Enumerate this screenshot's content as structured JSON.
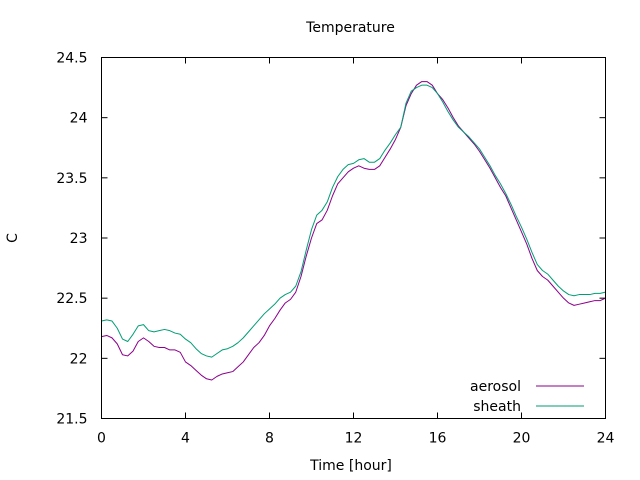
{
  "chart_data": {
    "type": "line",
    "title": "Temperature",
    "xlabel": "Time [hour]",
    "ylabel": "C",
    "xlim": [
      0,
      24
    ],
    "ylim": [
      21.5,
      24.5
    ],
    "xticks": [
      0,
      4,
      8,
      12,
      16,
      20,
      24
    ],
    "xtick_labels": [
      "0",
      "4",
      "8",
      "12",
      "16",
      "20",
      "24"
    ],
    "yticks": [
      21.5,
      22,
      22.5,
      23,
      23.5,
      24,
      24.5
    ],
    "ytick_labels": [
      "21.5",
      "22",
      "22.5",
      "23",
      "23.5",
      "24",
      "24.5"
    ],
    "grid": false,
    "legend_position": "bottom-right",
    "series": [
      {
        "name": "aerosol",
        "color": "#8b008b",
        "x": [
          0,
          0.25,
          0.5,
          0.75,
          1.0,
          1.25,
          1.5,
          1.75,
          2.0,
          2.25,
          2.5,
          2.75,
          3.0,
          3.25,
          3.5,
          3.75,
          4.0,
          4.25,
          4.5,
          4.75,
          5.0,
          5.25,
          5.5,
          5.75,
          6.0,
          6.25,
          6.5,
          6.75,
          7.0,
          7.25,
          7.5,
          7.75,
          8.0,
          8.25,
          8.5,
          8.75,
          9.0,
          9.25,
          9.5,
          9.75,
          10.0,
          10.25,
          10.5,
          10.75,
          11.0,
          11.25,
          11.5,
          11.75,
          12.0,
          12.25,
          12.5,
          12.75,
          13.0,
          13.25,
          13.5,
          13.75,
          14.0,
          14.25,
          14.5,
          14.75,
          15.0,
          15.25,
          15.5,
          15.75,
          16.0,
          16.25,
          16.5,
          16.75,
          17.0,
          17.25,
          17.5,
          17.75,
          18.0,
          18.25,
          18.5,
          18.75,
          19.0,
          19.25,
          19.5,
          19.75,
          20.0,
          20.25,
          20.5,
          20.75,
          21.0,
          21.25,
          21.5,
          21.75,
          22.0,
          22.25,
          22.5,
          22.75,
          23.0,
          23.25,
          23.5,
          23.75,
          24.0
        ],
        "values": [
          22.18,
          22.19,
          22.17,
          22.12,
          22.03,
          22.02,
          22.06,
          22.14,
          22.17,
          22.14,
          22.1,
          22.09,
          22.09,
          22.07,
          22.07,
          22.05,
          21.97,
          21.94,
          21.9,
          21.86,
          21.83,
          21.82,
          21.85,
          21.87,
          21.88,
          21.89,
          21.93,
          21.97,
          22.03,
          22.09,
          22.13,
          22.19,
          22.27,
          22.33,
          22.4,
          22.46,
          22.49,
          22.55,
          22.68,
          22.85,
          23.0,
          23.12,
          23.15,
          23.23,
          23.35,
          23.45,
          23.5,
          23.55,
          23.58,
          23.6,
          23.58,
          23.57,
          23.57,
          23.6,
          23.67,
          23.74,
          23.82,
          23.92,
          24.1,
          24.2,
          24.27,
          24.3,
          24.3,
          24.27,
          24.2,
          24.15,
          24.08,
          24.0,
          23.93,
          23.88,
          23.83,
          23.78,
          23.72,
          23.65,
          23.58,
          23.5,
          23.42,
          23.35,
          23.25,
          23.15,
          23.05,
          22.95,
          22.83,
          22.73,
          22.68,
          22.65,
          22.6,
          22.55,
          22.5,
          22.46,
          22.44,
          22.45,
          22.46,
          22.47,
          22.48,
          22.48,
          22.5
        ]
      },
      {
        "name": "sheath",
        "color": "#009e73",
        "x": [
          0,
          0.25,
          0.5,
          0.75,
          1.0,
          1.25,
          1.5,
          1.75,
          2.0,
          2.25,
          2.5,
          2.75,
          3.0,
          3.25,
          3.5,
          3.75,
          4.0,
          4.25,
          4.5,
          4.75,
          5.0,
          5.25,
          5.5,
          5.75,
          6.0,
          6.25,
          6.5,
          6.75,
          7.0,
          7.25,
          7.5,
          7.75,
          8.0,
          8.25,
          8.5,
          8.75,
          9.0,
          9.25,
          9.5,
          9.75,
          10.0,
          10.25,
          10.5,
          10.75,
          11.0,
          11.25,
          11.5,
          11.75,
          12.0,
          12.25,
          12.5,
          12.75,
          13.0,
          13.25,
          13.5,
          13.75,
          14.0,
          14.25,
          14.5,
          14.75,
          15.0,
          15.25,
          15.5,
          15.75,
          16.0,
          16.25,
          16.5,
          16.75,
          17.0,
          17.25,
          17.5,
          17.75,
          18.0,
          18.25,
          18.5,
          18.75,
          19.0,
          19.25,
          19.5,
          19.75,
          20.0,
          20.25,
          20.5,
          20.75,
          21.0,
          21.25,
          21.5,
          21.75,
          22.0,
          22.25,
          22.5,
          22.75,
          23.0,
          23.25,
          23.5,
          23.75,
          24.0
        ],
        "values": [
          22.31,
          22.32,
          22.31,
          22.25,
          22.16,
          22.14,
          22.2,
          22.27,
          22.28,
          22.23,
          22.22,
          22.23,
          22.24,
          22.23,
          22.21,
          22.2,
          22.16,
          22.13,
          22.08,
          22.04,
          22.02,
          22.01,
          22.04,
          22.07,
          22.08,
          22.1,
          22.13,
          22.17,
          22.22,
          22.27,
          22.32,
          22.37,
          22.41,
          22.45,
          22.5,
          22.53,
          22.55,
          22.6,
          22.72,
          22.9,
          23.07,
          23.19,
          23.23,
          23.3,
          23.42,
          23.51,
          23.57,
          23.61,
          23.62,
          23.65,
          23.66,
          23.63,
          23.63,
          23.66,
          23.73,
          23.79,
          23.86,
          23.92,
          24.12,
          24.22,
          24.25,
          24.27,
          24.27,
          24.25,
          24.2,
          24.13,
          24.05,
          23.98,
          23.92,
          23.88,
          23.84,
          23.79,
          23.74,
          23.67,
          23.6,
          23.52,
          23.45,
          23.37,
          23.28,
          23.18,
          23.09,
          22.99,
          22.88,
          22.78,
          22.73,
          22.7,
          22.65,
          22.6,
          22.56,
          22.53,
          22.52,
          22.53,
          22.53,
          22.53,
          22.54,
          22.54,
          22.55
        ]
      }
    ]
  }
}
